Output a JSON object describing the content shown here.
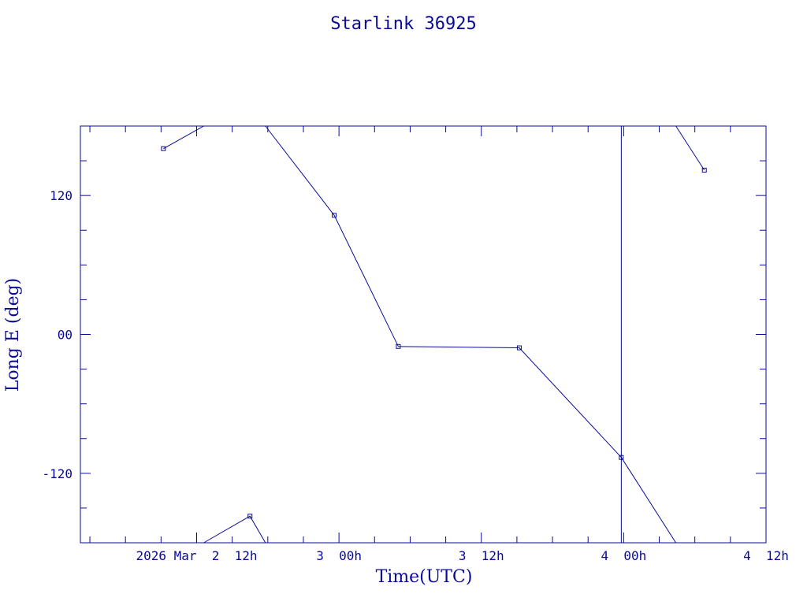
{
  "chart_data": {
    "type": "line",
    "title": "Starlink 36925",
    "xlabel": "Time(UTC)",
    "ylabel": "Long E (deg)",
    "x_unit": "hours from 2026 Mar 2 00h UTC",
    "xlim": [
      2.2,
      60.0
    ],
    "ylim": [
      -180,
      180
    ],
    "x_tick_labels": [
      {
        "x": 12,
        "label": "2026 Mar  2  12h"
      },
      {
        "x": 24,
        "label": "3  00h"
      },
      {
        "x": 36,
        "label": "3  12h"
      },
      {
        "x": 48,
        "label": "4  00h"
      },
      {
        "x": 60,
        "label": "4  12h"
      }
    ],
    "y_tick_labels": [
      {
        "y": 120,
        "label": "120"
      },
      {
        "y": 0,
        "label": "00"
      },
      {
        "y": -120,
        "label": "-120"
      }
    ],
    "series": [
      {
        "segments": [
          [
            [
              9.2,
              160.5
            ],
            [
              12.6,
              180
            ]
          ],
          [
            [
              12.6,
              -180
            ],
            [
              16.5,
              -157
            ],
            [
              17.8,
              -180
            ]
          ],
          [
            [
              17.8,
              180
            ],
            [
              23.6,
              102.9
            ],
            [
              29.0,
              -10.4
            ],
            [
              39.2,
              -11.6
            ],
            [
              47.8,
              -106.3
            ],
            [
              52.4,
              -180
            ]
          ],
          [
            [
              52.4,
              180
            ],
            [
              54.8,
              141.9
            ]
          ]
        ],
        "markers": [
          [
            9.2,
            160.5
          ],
          [
            16.5,
            -157
          ],
          [
            23.6,
            102.9
          ],
          [
            29.0,
            -10.4
          ],
          [
            39.2,
            -11.6
          ],
          [
            47.8,
            -106.3
          ],
          [
            54.8,
            141.9
          ]
        ]
      }
    ],
    "vlines": [
      47.8
    ],
    "grid": false,
    "color": "#0a0a96"
  }
}
